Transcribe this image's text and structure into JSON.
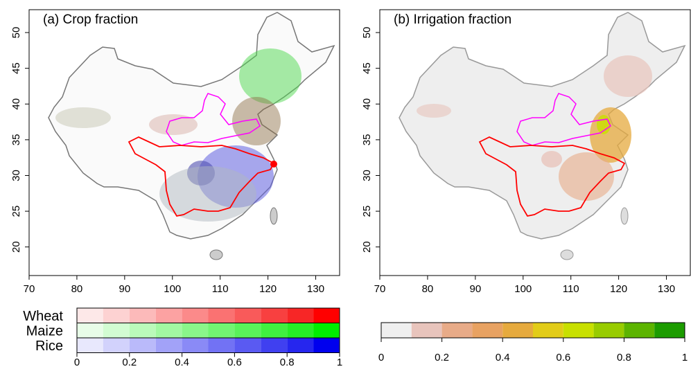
{
  "panels": [
    {
      "title": "(a) Crop fraction",
      "xlim": [
        70,
        135
      ],
      "ylim": [
        16,
        53.2
      ],
      "xticks": [
        70,
        80,
        90,
        100,
        110,
        120,
        130
      ],
      "yticks": [
        20,
        25,
        30,
        35,
        40,
        45,
        50
      ]
    },
    {
      "title": "(b) Irrigation fraction",
      "xlim": [
        70,
        135
      ],
      "ylim": [
        16,
        53.2
      ],
      "xticks": [
        70,
        80,
        90,
        100,
        110,
        120,
        130
      ],
      "yticks": [
        20,
        25,
        30,
        35,
        40,
        45,
        50
      ]
    }
  ],
  "colorbars": [
    {
      "bins": [
        0,
        0.1,
        0.2,
        0.3,
        0.4,
        0.5,
        0.6,
        0.7,
        0.8,
        0.9,
        1
      ],
      "ticks": [
        0,
        0.2,
        0.4,
        0.6,
        0.8,
        1
      ],
      "rows": [
        {
          "label": "Wheat",
          "colors": [
            "#fde8e8",
            "#fdd2d2",
            "#fcbaba",
            "#fca2a2",
            "#fb8a8a",
            "#fa7272",
            "#f95a5a",
            "#f84040",
            "#f72626",
            "#ff0000"
          ]
        },
        {
          "label": "Maize",
          "colors": [
            "#e8fde8",
            "#d2fcd2",
            "#bafaba",
            "#a2f8a2",
            "#8af68a",
            "#72f472",
            "#5af25a",
            "#40f040",
            "#26ee26",
            "#00ee00"
          ]
        },
        {
          "label": "Rice",
          "colors": [
            "#e8e8fd",
            "#d2d2fc",
            "#babafa",
            "#a2a2f8",
            "#8a8af6",
            "#7272f4",
            "#5a5af2",
            "#4040f0",
            "#2626ee",
            "#0000ee"
          ]
        }
      ]
    },
    {
      "bins": [
        0,
        0.1,
        0.2,
        0.3,
        0.4,
        0.5,
        0.6,
        0.7,
        0.8,
        0.9,
        1
      ],
      "ticks": [
        0,
        0.2,
        0.4,
        0.6,
        0.8,
        1
      ],
      "rows": [
        {
          "colors": [
            "#efefef",
            "#e8c4bc",
            "#e8ab88",
            "#e8a262",
            "#e6aa3e",
            "#e2cc18",
            "#c8e000",
            "#98cc00",
            "#5cb400",
            "#1c9c00"
          ]
        }
      ]
    }
  ]
}
